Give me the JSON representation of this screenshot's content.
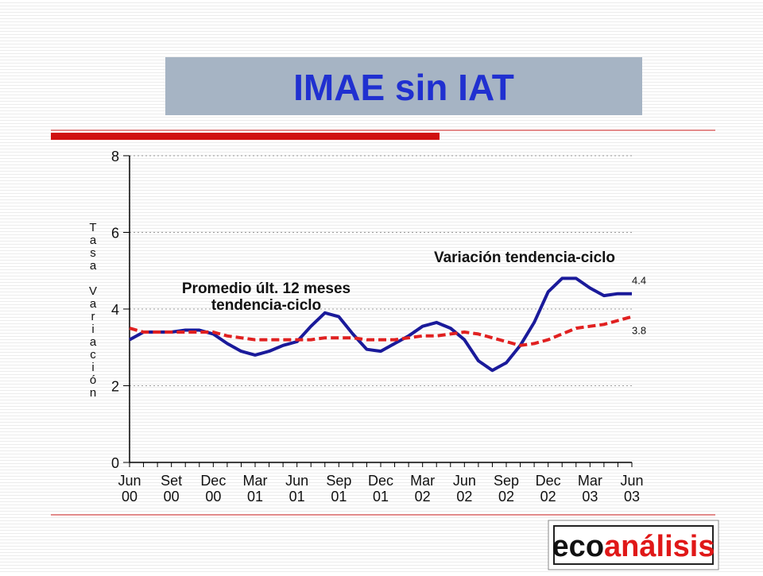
{
  "header": {
    "title": "IMAE sin IAT"
  },
  "chart_data": {
    "type": "line",
    "ylabel": "Tasa Variación",
    "categories": [
      "Jun\n00",
      null,
      null,
      "Set\n00",
      null,
      null,
      "Dec\n00",
      null,
      null,
      "Mar\n01",
      null,
      null,
      "Jun\n01",
      null,
      null,
      "Sep\n01",
      null,
      null,
      "Dec\n01",
      null,
      null,
      "Mar\n02",
      null,
      null,
      "Jun\n02",
      null,
      null,
      "Sep\n02",
      null,
      null,
      "Dec\n02",
      null,
      null,
      "Mar\n03",
      null,
      null,
      "Jun\n03"
    ],
    "series": [
      {
        "name": "Variación tendencia-ciclo",
        "color": "#1a1a9a",
        "values": [
          3.2,
          3.4,
          3.4,
          3.4,
          3.45,
          3.45,
          3.35,
          3.1,
          2.9,
          2.8,
          2.9,
          3.05,
          3.15,
          3.55,
          3.9,
          3.8,
          3.35,
          2.95,
          2.9,
          3.1,
          3.3,
          3.55,
          3.65,
          3.5,
          3.2,
          2.65,
          2.4,
          2.6,
          3.05,
          3.65,
          4.45,
          4.8,
          4.8,
          4.55,
          4.35,
          4.4,
          4.4
        ]
      },
      {
        "name": "Promedio últ. 12 meses\ntendencia-ciclo",
        "color": "#e02020",
        "dashed": true,
        "values": [
          3.5,
          3.4,
          3.4,
          3.4,
          3.4,
          3.4,
          3.4,
          3.3,
          3.25,
          3.2,
          3.2,
          3.2,
          3.2,
          3.2,
          3.25,
          3.25,
          3.25,
          3.2,
          3.2,
          3.2,
          3.25,
          3.3,
          3.3,
          3.35,
          3.4,
          3.35,
          3.25,
          3.15,
          3.05,
          3.1,
          3.2,
          3.35,
          3.5,
          3.55,
          3.6,
          3.7,
          3.8
        ]
      }
    ],
    "ylim": [
      0,
      8
    ],
    "yticks": [
      0,
      2,
      4,
      6,
      8
    ],
    "grid": true
  },
  "logo": [
    "eco",
    "análisis"
  ]
}
